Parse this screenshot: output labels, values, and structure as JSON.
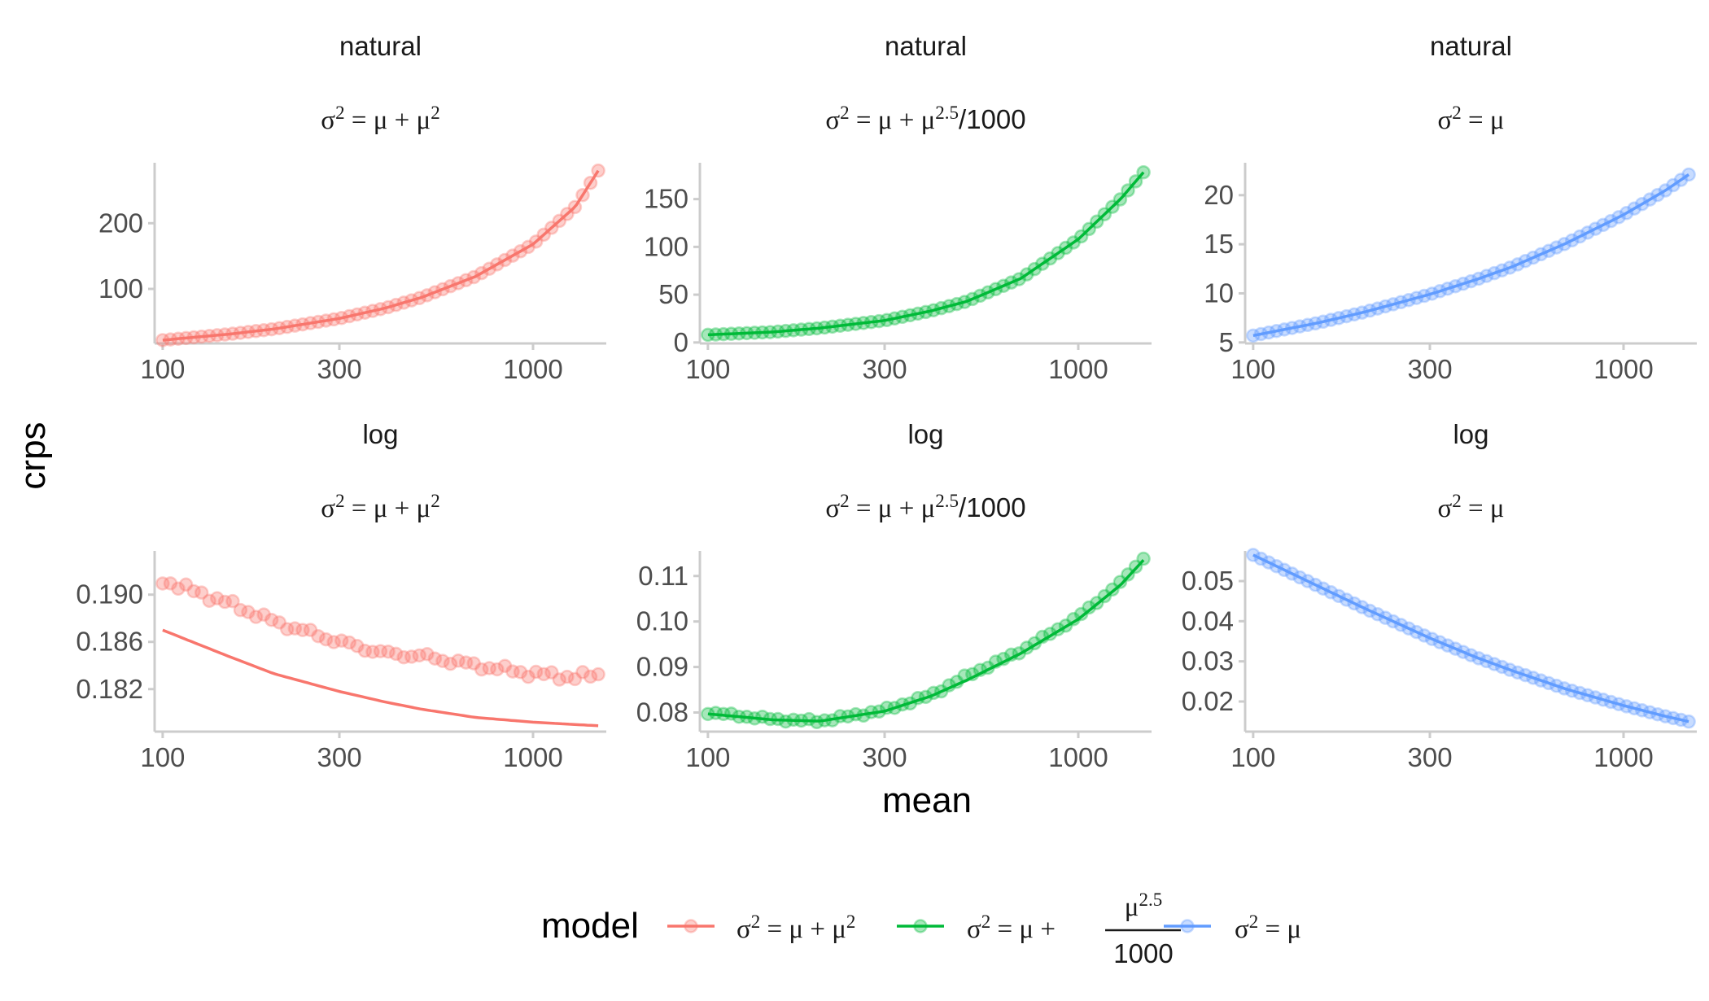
{
  "chart_data": {
    "type": "scatter",
    "xlabel": "mean",
    "ylabel": "crps",
    "x_scale": "log",
    "x_ticks": [
      100,
      300,
      1000
    ],
    "x_tick_labels": [
      "100",
      "300",
      "1000"
    ],
    "x_range": [
      100,
      1500
    ],
    "legend": {
      "title": "model",
      "position": "bottom",
      "entries": [
        {
          "key": "nb2",
          "label": "σ² = μ + μ²",
          "color": "#F8766D"
        },
        {
          "key": "nb25",
          "label": "σ² = μ + μ^2.5/1000",
          "color": "#00BA38"
        },
        {
          "key": "pois",
          "label": "σ² = μ",
          "color": "#619CFF"
        }
      ]
    },
    "panels": [
      {
        "id": "natural-nb2",
        "row": "natural",
        "model": "nb2",
        "strip_top": "natural",
        "strip_model": "σ² = μ + μ²",
        "color": "#F8766D",
        "ylim": [
          17,
          292
        ],
        "y_ticks": [
          100,
          200
        ],
        "y_tick_labels": [
          "100",
          "200"
        ],
        "line": [
          [
            100,
            22
          ],
          [
            150,
            31
          ],
          [
            200,
            39
          ],
          [
            300,
            55
          ],
          [
            400,
            71
          ],
          [
            500,
            87
          ],
          [
            700,
            119
          ],
          [
            1000,
            168
          ],
          [
            1300,
            225
          ],
          [
            1500,
            280
          ]
        ],
        "points_anchor": [
          [
            100,
            22
          ],
          [
            150,
            31
          ],
          [
            200,
            39
          ],
          [
            300,
            55
          ],
          [
            400,
            71
          ],
          [
            500,
            87
          ],
          [
            700,
            119
          ],
          [
            1000,
            168
          ],
          [
            1300,
            225
          ],
          [
            1500,
            280
          ]
        ],
        "points_noise": 0
      },
      {
        "id": "natural-nb25",
        "row": "natural",
        "model": "nb25",
        "strip_top": "natural",
        "strip_model": "σ² = μ + μ^2.5/1000",
        "color": "#00BA38",
        "ylim": [
          -1,
          188
        ],
        "y_ticks": [
          0,
          50,
          100,
          150
        ],
        "y_tick_labels": [
          "0",
          "50",
          "100",
          "150"
        ],
        "line": [
          [
            100,
            8
          ],
          [
            150,
            11
          ],
          [
            200,
            15
          ],
          [
            300,
            23
          ],
          [
            400,
            33
          ],
          [
            500,
            43
          ],
          [
            700,
            67
          ],
          [
            1000,
            108
          ],
          [
            1300,
            150
          ],
          [
            1500,
            178
          ]
        ],
        "points_anchor": [
          [
            100,
            8
          ],
          [
            150,
            11
          ],
          [
            200,
            15
          ],
          [
            300,
            23
          ],
          [
            400,
            33
          ],
          [
            500,
            43
          ],
          [
            700,
            67
          ],
          [
            1000,
            108
          ],
          [
            1300,
            150
          ],
          [
            1500,
            178
          ]
        ],
        "points_noise": 0
      },
      {
        "id": "natural-pois",
        "row": "natural",
        "model": "pois",
        "strip_top": "natural",
        "strip_model": "σ² = μ",
        "color": "#619CFF",
        "ylim": [
          4.9,
          23.3
        ],
        "y_ticks": [
          5,
          10,
          15,
          20
        ],
        "y_tick_labels": [
          "5",
          "10",
          "15",
          "20"
        ],
        "line": [
          [
            100,
            5.7
          ],
          [
            150,
            7.0
          ],
          [
            200,
            8.1
          ],
          [
            300,
            9.9
          ],
          [
            400,
            11.4
          ],
          [
            500,
            12.7
          ],
          [
            700,
            15.1
          ],
          [
            1000,
            18.0
          ],
          [
            1300,
            20.5
          ],
          [
            1500,
            22.1
          ]
        ],
        "points_anchor": [
          [
            100,
            5.7
          ],
          [
            150,
            7.0
          ],
          [
            200,
            8.1
          ],
          [
            300,
            9.9
          ],
          [
            400,
            11.4
          ],
          [
            500,
            12.7
          ],
          [
            700,
            15.1
          ],
          [
            1000,
            18.0
          ],
          [
            1300,
            20.5
          ],
          [
            1500,
            22.1
          ]
        ],
        "points_noise": 0
      },
      {
        "id": "log-nb2",
        "row": "log",
        "model": "nb2",
        "strip_top": "log",
        "strip_model": "σ² = μ + μ²",
        "color": "#F8766D",
        "ylim": [
          0.1784,
          0.1937
        ],
        "y_ticks": [
          0.182,
          0.186,
          0.19
        ],
        "y_tick_labels": [
          "0.182",
          "0.186",
          "0.190"
        ],
        "line": [
          [
            100,
            0.187
          ],
          [
            150,
            0.1848
          ],
          [
            200,
            0.1833
          ],
          [
            300,
            0.1818
          ],
          [
            400,
            0.1809
          ],
          [
            500,
            0.1803
          ],
          [
            700,
            0.1796
          ],
          [
            1000,
            0.1792
          ],
          [
            1300,
            0.179
          ],
          [
            1500,
            0.1789
          ]
        ],
        "points_anchor": [
          [
            100,
            0.1912
          ],
          [
            150,
            0.1893
          ],
          [
            200,
            0.1877
          ],
          [
            300,
            0.186
          ],
          [
            400,
            0.185
          ],
          [
            500,
            0.1848
          ],
          [
            700,
            0.184
          ],
          [
            1000,
            0.1833
          ],
          [
            1300,
            0.183
          ],
          [
            1500,
            0.1832
          ]
        ],
        "points_noise": 0.0004
      },
      {
        "id": "log-nb25",
        "row": "log",
        "model": "nb25",
        "strip_top": "log",
        "strip_model": "σ² = μ + μ^2.5/1000",
        "color": "#00BA38",
        "ylim": [
          0.0758,
          0.1155
        ],
        "y_ticks": [
          0.08,
          0.09,
          0.1,
          0.11
        ],
        "y_tick_labels": [
          "0.08",
          "0.09",
          "0.10",
          "0.11"
        ],
        "line": [
          [
            100,
            0.0797
          ],
          [
            150,
            0.0784
          ],
          [
            200,
            0.0781
          ],
          [
            300,
            0.0803
          ],
          [
            400,
            0.0836
          ],
          [
            500,
            0.0871
          ],
          [
            700,
            0.093
          ],
          [
            1000,
            0.1005
          ],
          [
            1300,
            0.108
          ],
          [
            1500,
            0.1135
          ]
        ],
        "points_anchor": [
          [
            100,
            0.08
          ],
          [
            150,
            0.0785
          ],
          [
            200,
            0.0781
          ],
          [
            300,
            0.0805
          ],
          [
            400,
            0.0838
          ],
          [
            500,
            0.088
          ],
          [
            700,
            0.0935
          ],
          [
            1000,
            0.101
          ],
          [
            1300,
            0.1085
          ],
          [
            1500,
            0.114
          ]
        ],
        "points_noise": 0.0004
      },
      {
        "id": "log-pois",
        "row": "log",
        "model": "pois",
        "strip_top": "log",
        "strip_model": "σ² = μ",
        "color": "#619CFF",
        "ylim": [
          0.0125,
          0.0575
        ],
        "y_ticks": [
          0.02,
          0.03,
          0.04,
          0.05
        ],
        "y_tick_labels": [
          "0.02",
          "0.03",
          "0.04",
          "0.05"
        ],
        "line": [
          [
            100,
            0.0565
          ],
          [
            150,
            0.0487
          ],
          [
            200,
            0.0432
          ],
          [
            300,
            0.0358
          ],
          [
            400,
            0.031
          ],
          [
            500,
            0.0277
          ],
          [
            700,
            0.0231
          ],
          [
            1000,
            0.019
          ],
          [
            1300,
            0.0163
          ],
          [
            1500,
            0.015
          ]
        ],
        "points_anchor": [
          [
            100,
            0.0565
          ],
          [
            150,
            0.0487
          ],
          [
            200,
            0.0432
          ],
          [
            300,
            0.0358
          ],
          [
            400,
            0.031
          ],
          [
            500,
            0.0277
          ],
          [
            700,
            0.0231
          ],
          [
            1000,
            0.019
          ],
          [
            1300,
            0.0163
          ],
          [
            1500,
            0.015
          ]
        ],
        "points_noise": 0
      }
    ]
  }
}
